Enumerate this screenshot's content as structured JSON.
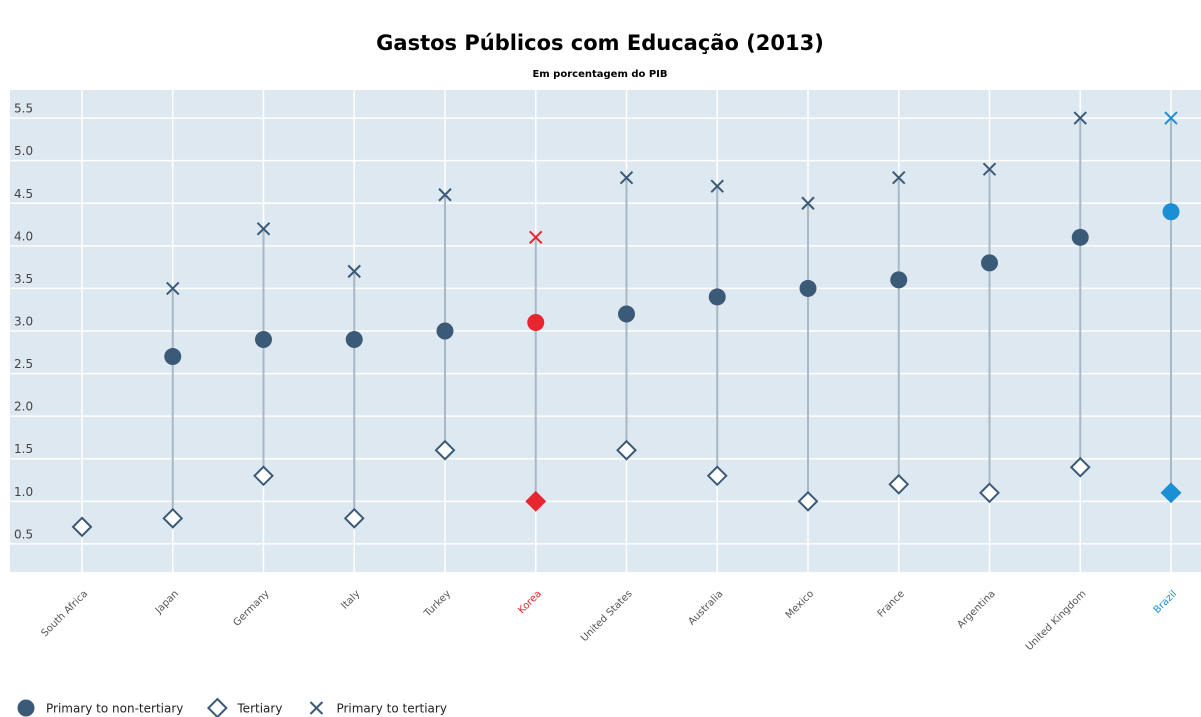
{
  "chart_data": {
    "type": "dot",
    "title": "Gastos Públicos com Educação (2013)",
    "subtitle": "Em porcentagem do PIB",
    "categories": [
      "South Africa",
      "Japan",
      "Germany",
      "Italy",
      "Turkey",
      "Korea",
      "United States",
      "Australia",
      "Mexico",
      "France",
      "Argentina",
      "United Kingdom",
      "Brazil"
    ],
    "highlight": [
      null,
      null,
      null,
      null,
      null,
      "#e8262f",
      null,
      null,
      null,
      null,
      null,
      null,
      "#1a8fd6"
    ],
    "label_color": "#555555",
    "series": [
      {
        "name": "Primary to non-tertiary",
        "marker": "circle",
        "color": "#3a5a78",
        "values": [
          null,
          2.7,
          2.9,
          2.9,
          3.0,
          3.1,
          3.2,
          3.4,
          3.5,
          3.6,
          3.8,
          4.1,
          4.4
        ]
      },
      {
        "name": "Tertiary",
        "marker": "diamond",
        "color": "#3a5a78",
        "values": [
          0.7,
          0.8,
          1.3,
          0.8,
          1.6,
          1.0,
          1.6,
          1.3,
          1.0,
          1.2,
          1.1,
          1.4,
          1.1
        ]
      },
      {
        "name": "Primary to tertiary",
        "marker": "x",
        "color": "#3a5a78",
        "values": [
          null,
          3.5,
          4.2,
          3.7,
          4.6,
          4.1,
          4.8,
          4.7,
          4.5,
          4.8,
          4.9,
          5.5,
          5.5
        ]
      }
    ],
    "ylim": [
      0.17,
      5.83
    ],
    "yticks": [
      0.5,
      {
        "value": 1,
        "label": "1.0"
      },
      1.5,
      {
        "value": 2,
        "label": "2.0"
      },
      2.5,
      {
        "value": 3,
        "label": "3.0"
      },
      3.5,
      {
        "value": 4,
        "label": "4.0"
      },
      4.5,
      {
        "value": 5,
        "label": "5.0"
      },
      5.5
    ],
    "grid": true
  }
}
